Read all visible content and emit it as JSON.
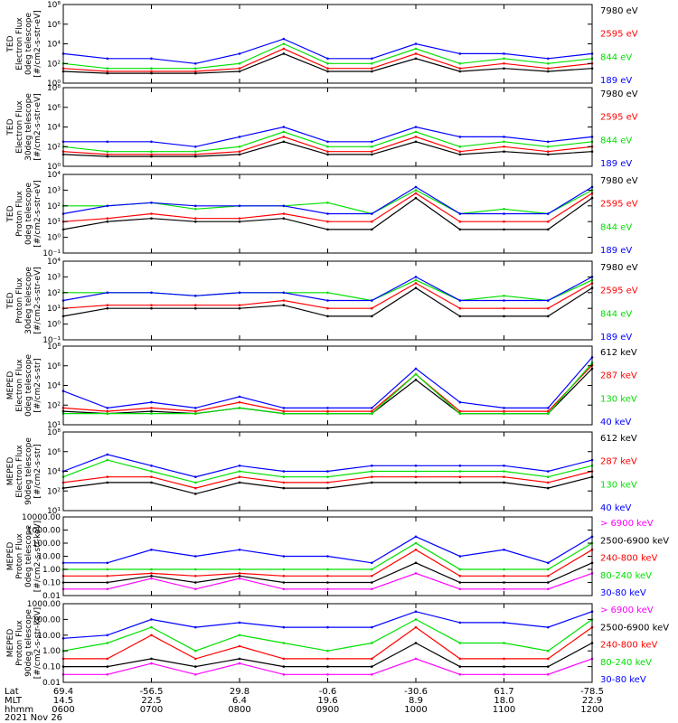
{
  "date_label": "2021 Nov 26",
  "colors": {
    "blue": "#0000ff",
    "green": "#00e000",
    "red": "#ff0000",
    "black": "#000000",
    "magenta": "#ff00ff"
  },
  "time_axis": {
    "rows": [
      {
        "label": "Lat",
        "values": [
          "69.4",
          "-56.5",
          "29.8",
          "-0.6",
          "-30.6",
          "61.7",
          "-78.5"
        ]
      },
      {
        "label": "MLT",
        "values": [
          "14.5",
          "22.5",
          "6.4",
          "19.6",
          "8.9",
          "18.0",
          "22.9"
        ]
      },
      {
        "label": "hhmm",
        "values": [
          "0600",
          "0700",
          "0800",
          "0900",
          "1000",
          "1100",
          "1200"
        ]
      }
    ]
  },
  "chart_data": [
    {
      "type": "line",
      "ylabel": [
        "TED",
        "Electron Flux",
        "0deg telescope",
        "[#/cm2-s-str-eV]"
      ],
      "yticks": [
        "10⁰",
        "10²",
        "10⁴",
        "10⁶",
        "10⁸"
      ],
      "log_range": [
        0,
        8
      ],
      "legend": [
        {
          "label": "7980 eV",
          "color": "#000000"
        },
        {
          "label": "2595 eV",
          "color": "#ff0000"
        },
        {
          "label": "844 eV",
          "color": "#00e000"
        },
        {
          "label": "189 eV",
          "color": "#0000ff"
        }
      ],
      "x": [
        "0600",
        "0630",
        "0700",
        "0730",
        "0800",
        "0830",
        "0900",
        "0930",
        "1000",
        "1030",
        "1100",
        "1130",
        "1200"
      ],
      "series": [
        {
          "name": "189 eV",
          "values": [
            3,
            2.5,
            2.5,
            2,
            3,
            4.5,
            2.5,
            2.5,
            4,
            3,
            3,
            2.5,
            3
          ]
        },
        {
          "name": "844 eV",
          "values": [
            2,
            1.5,
            1.5,
            1.5,
            2,
            4,
            2,
            2,
            3.5,
            2,
            2.5,
            2,
            2.5
          ]
        },
        {
          "name": "2595 eV",
          "values": [
            1.5,
            1.2,
            1.2,
            1.2,
            1.5,
            3.5,
            1.5,
            1.5,
            3,
            1.5,
            2,
            1.5,
            2
          ]
        },
        {
          "name": "7980 eV",
          "values": [
            1.2,
            1,
            1,
            1,
            1.2,
            3,
            1.2,
            1.2,
            2.5,
            1.2,
            1.5,
            1.2,
            1.5
          ]
        }
      ]
    },
    {
      "type": "line",
      "ylabel": [
        "TED",
        "Electron Flux",
        "30deg telescope",
        "[#/cm2-s-str-eV]"
      ],
      "yticks": [
        "10⁰",
        "10²",
        "10⁴",
        "10⁶",
        "10⁸"
      ],
      "log_range": [
        0,
        8
      ],
      "legend": [
        {
          "label": "7980 eV",
          "color": "#000000"
        },
        {
          "label": "2595 eV",
          "color": "#ff0000"
        },
        {
          "label": "844 eV",
          "color": "#00e000"
        },
        {
          "label": "189 eV",
          "color": "#0000ff"
        }
      ],
      "x": [
        "0600",
        "0630",
        "0700",
        "0730",
        "0800",
        "0830",
        "0900",
        "0930",
        "1000",
        "1030",
        "1100",
        "1130",
        "1200"
      ],
      "series": [
        {
          "name": "189 eV",
          "values": [
            2.5,
            2.5,
            2.5,
            2,
            3,
            4,
            2.5,
            2.5,
            4,
            3,
            3,
            2.5,
            3
          ]
        },
        {
          "name": "844 eV",
          "values": [
            2,
            1.5,
            1.5,
            1.5,
            2,
            3.5,
            2,
            2,
            3.5,
            2,
            2.5,
            2,
            2.5
          ]
        },
        {
          "name": "2595 eV",
          "values": [
            1.5,
            1.2,
            1.2,
            1.2,
            1.5,
            3,
            1.5,
            1.5,
            3,
            1.5,
            2,
            1.5,
            2
          ]
        },
        {
          "name": "7980 eV",
          "values": [
            1.2,
            1,
            1,
            1,
            1.2,
            2.5,
            1.2,
            1.2,
            2.5,
            1.2,
            1.5,
            1.2,
            1.5
          ]
        }
      ]
    },
    {
      "type": "line",
      "ylabel": [
        "TED",
        "Proton Flux",
        "0deg telescope",
        "[#/cm2-s-str-eV]"
      ],
      "yticks": [
        "10⁻¹",
        "10⁰",
        "10¹",
        "10²",
        "10³",
        "10⁴"
      ],
      "log_range": [
        -1,
        4
      ],
      "legend": [
        {
          "label": "7980 eV",
          "color": "#000000"
        },
        {
          "label": "2595 eV",
          "color": "#ff0000"
        },
        {
          "label": "844 eV",
          "color": "#00e000"
        },
        {
          "label": "189 eV",
          "color": "#0000ff"
        }
      ],
      "x": [
        "0600",
        "0630",
        "0700",
        "0730",
        "0800",
        "0830",
        "0900",
        "0930",
        "1000",
        "1030",
        "1100",
        "1130",
        "1200"
      ],
      "series": [
        {
          "name": "189 eV",
          "values": [
            1.5,
            2,
            2.2,
            2,
            2,
            2,
            1.5,
            1.5,
            3.2,
            1.5,
            1.5,
            1.5,
            3.2
          ]
        },
        {
          "name": "844 eV",
          "values": [
            2,
            2,
            2.2,
            1.8,
            2,
            2,
            2.2,
            1.5,
            3,
            1.5,
            1.8,
            1.5,
            3
          ]
        },
        {
          "name": "2595 eV",
          "values": [
            1,
            1.2,
            1.5,
            1.2,
            1.2,
            1.5,
            1,
            1,
            2.8,
            1,
            1,
            1,
            2.8
          ]
        },
        {
          "name": "7980 eV",
          "values": [
            0.5,
            1,
            1.2,
            1,
            1,
            1.2,
            0.5,
            0.5,
            2.5,
            0.5,
            0.5,
            0.5,
            2.5
          ]
        }
      ]
    },
    {
      "type": "line",
      "ylabel": [
        "TED",
        "Proton Flux",
        "30deg telescope",
        "[#/cm2-s-str-eV]"
      ],
      "yticks": [
        "10⁻¹",
        "10⁰",
        "10¹",
        "10²",
        "10³",
        "10⁴"
      ],
      "log_range": [
        -1,
        4
      ],
      "legend": [
        {
          "label": "7980 eV",
          "color": "#000000"
        },
        {
          "label": "2595 eV",
          "color": "#ff0000"
        },
        {
          "label": "844 eV",
          "color": "#00e000"
        },
        {
          "label": "189 eV",
          "color": "#0000ff"
        }
      ],
      "x": [
        "0600",
        "0630",
        "0700",
        "0730",
        "0800",
        "0830",
        "0900",
        "0930",
        "1000",
        "1030",
        "1100",
        "1130",
        "1200"
      ],
      "series": [
        {
          "name": "189 eV",
          "values": [
            1.5,
            2,
            2,
            1.8,
            2,
            2,
            1.5,
            1.5,
            3,
            1.5,
            1.5,
            1.5,
            3
          ]
        },
        {
          "name": "844 eV",
          "values": [
            2,
            2,
            2,
            1.8,
            2,
            2,
            2,
            1.5,
            2.8,
            1.5,
            1.8,
            1.5,
            2.8
          ]
        },
        {
          "name": "2595 eV",
          "values": [
            1,
            1.2,
            1.2,
            1.2,
            1.2,
            1.5,
            1,
            1,
            2.6,
            1,
            1,
            1,
            2.6
          ]
        },
        {
          "name": "7980 eV",
          "values": [
            0.5,
            1,
            1,
            1,
            1,
            1.2,
            0.5,
            0.5,
            2.3,
            0.5,
            0.5,
            0.5,
            2.3
          ]
        }
      ]
    },
    {
      "type": "line",
      "ylabel": [
        "MEPED",
        "Electron Flux",
        "0deg telescope",
        "[#/cm2-s-str]"
      ],
      "yticks": [
        "10¹",
        "10²",
        "10⁴",
        "10⁶",
        "10⁸"
      ],
      "log_range": [
        1,
        8
      ],
      "legend": [
        {
          "label": "612 keV",
          "color": "#000000"
        },
        {
          "label": "287 keV",
          "color": "#ff0000"
        },
        {
          "label": "130 keV",
          "color": "#00e000"
        },
        {
          "label": "40 keV",
          "color": "#0000ff"
        }
      ],
      "x": [
        "0600",
        "0630",
        "0700",
        "0730",
        "0800",
        "0830",
        "0900",
        "0930",
        "1000",
        "1030",
        "1100",
        "1130",
        "1200"
      ],
      "series": [
        {
          "name": "40 keV",
          "values": [
            4,
            2.5,
            3,
            2.5,
            3.5,
            2.5,
            2.5,
            2.5,
            6,
            3,
            2.5,
            2.5,
            7
          ]
        },
        {
          "name": "130 keV",
          "values": [
            2,
            2,
            2,
            2,
            2.5,
            2,
            2,
            2,
            5.5,
            2,
            2,
            2,
            6.5
          ]
        },
        {
          "name": "287 keV",
          "values": [
            2.5,
            2.2,
            2.5,
            2.2,
            3,
            2.2,
            2.2,
            2.2,
            5.5,
            2.2,
            2.2,
            2.2,
            6.3
          ]
        },
        {
          "name": "612 keV",
          "values": [
            2.2,
            2,
            2.2,
            2,
            2.5,
            2,
            2,
            2,
            5,
            2,
            2,
            2,
            6
          ]
        }
      ]
    },
    {
      "type": "line",
      "ylabel": [
        "MEPED",
        "Electron Flux",
        "90deg telescope",
        "[#/cm2-s-str]"
      ],
      "yticks": [
        "10¹",
        "10²",
        "10⁴",
        "10⁶",
        "10⁸"
      ],
      "log_range": [
        1,
        8
      ],
      "legend": [
        {
          "label": "612 keV",
          "color": "#000000"
        },
        {
          "label": "287 keV",
          "color": "#ff0000"
        },
        {
          "label": "130 keV",
          "color": "#00e000"
        },
        {
          "label": "40 keV",
          "color": "#0000ff"
        }
      ],
      "x": [
        "0600",
        "0630",
        "0700",
        "0730",
        "0800",
        "0830",
        "0900",
        "0930",
        "1000",
        "1030",
        "1100",
        "1130",
        "1200"
      ],
      "series": [
        {
          "name": "40 keV",
          "values": [
            4.5,
            6,
            5,
            4,
            5,
            4.5,
            4.5,
            5,
            5,
            5,
            5,
            4.5,
            5.5
          ]
        },
        {
          "name": "130 keV",
          "values": [
            4,
            5.5,
            4.5,
            3.5,
            4.5,
            4,
            4,
            4.5,
            4.5,
            4.5,
            4.5,
            4,
            5
          ]
        },
        {
          "name": "287 keV",
          "values": [
            3.5,
            4,
            4,
            3,
            4,
            3.5,
            3.5,
            4,
            4,
            4,
            4,
            3.5,
            4.5
          ]
        },
        {
          "name": "612 keV",
          "values": [
            3,
            3.5,
            3.5,
            2.5,
            3.5,
            3,
            3,
            3.5,
            3.5,
            3.5,
            3.5,
            3,
            4
          ]
        }
      ]
    },
    {
      "type": "line",
      "ylabel": [
        "MEPED",
        "Proton Flux",
        "0deg telescope",
        "[#/cm2-s-str-keV]"
      ],
      "yticks": [
        "0.01",
        "0.10",
        "1.00",
        "10.00",
        "100.00",
        "1000.00",
        "10000.00"
      ],
      "log_range": [
        -2,
        4
      ],
      "legend": [
        {
          "label": "> 6900 keV",
          "color": "#ff00ff"
        },
        {
          "label": "2500-6900 keV",
          "color": "#000000"
        },
        {
          "label": "240-800 keV",
          "color": "#ff0000"
        },
        {
          "label": "80-240 keV",
          "color": "#00e000"
        },
        {
          "label": "30-80 keV",
          "color": "#0000ff"
        }
      ],
      "x": [
        "0600",
        "0630",
        "0700",
        "0730",
        "0800",
        "0830",
        "0900",
        "0930",
        "1000",
        "1030",
        "1100",
        "1130",
        "1200"
      ],
      "series": [
        {
          "name": "30-80 keV",
          "values": [
            0.5,
            0.5,
            1.5,
            1,
            1.5,
            1,
            1,
            0.5,
            2.5,
            1,
            1.5,
            0.5,
            2.5
          ]
        },
        {
          "name": "80-240 keV",
          "values": [
            0,
            0,
            0,
            0,
            0,
            0,
            0,
            0,
            2,
            0,
            0,
            0,
            2
          ]
        },
        {
          "name": "240-800 keV",
          "values": [
            -0.5,
            -0.5,
            -0.3,
            -0.5,
            -0.3,
            -0.5,
            -0.5,
            -0.5,
            1.5,
            -0.5,
            -0.5,
            -0.5,
            1.5
          ]
        },
        {
          "name": "2500-6900 keV",
          "values": [
            -1,
            -1,
            -0.5,
            -1,
            -0.5,
            -1,
            -1,
            -1,
            0.5,
            -1,
            -1,
            -1,
            0.5
          ]
        },
        {
          "name": "> 6900 keV",
          "values": [
            -1.5,
            -1.5,
            -0.7,
            -1.5,
            -0.7,
            -1.5,
            -1.5,
            -1.5,
            -0.3,
            -1.5,
            -1.5,
            -1.5,
            -0.3
          ]
        }
      ]
    },
    {
      "type": "line",
      "ylabel": [
        "MEPED",
        "Proton Flux",
        "90deg telescope",
        "[#/cm2-s-str-keV]"
      ],
      "yticks": [
        "0.01",
        "0.10",
        "1.00",
        "10.00",
        "100.00",
        "1000.00"
      ],
      "log_range": [
        -2,
        3
      ],
      "legend": [
        {
          "label": "> 6900 keV",
          "color": "#ff00ff"
        },
        {
          "label": "2500-6900 keV",
          "color": "#000000"
        },
        {
          "label": "240-800 keV",
          "color": "#ff0000"
        },
        {
          "label": "80-240 keV",
          "color": "#00e000"
        },
        {
          "label": "30-80 keV",
          "color": "#0000ff"
        }
      ],
      "x": [
        "0600",
        "0630",
        "0700",
        "0730",
        "0800",
        "0830",
        "0900",
        "0930",
        "1000",
        "1030",
        "1100",
        "1130",
        "1200"
      ],
      "series": [
        {
          "name": "30-80 keV",
          "values": [
            0.8,
            1,
            2,
            1.5,
            1.8,
            1.5,
            1.5,
            1.5,
            2.5,
            1.8,
            1.8,
            1.5,
            2.5
          ]
        },
        {
          "name": "80-240 keV",
          "values": [
            0,
            0.5,
            1.5,
            0,
            1,
            0.5,
            0,
            0.5,
            2,
            0.5,
            0.5,
            0,
            2
          ]
        },
        {
          "name": "240-800 keV",
          "values": [
            -0.5,
            -0.5,
            1,
            -0.5,
            0.3,
            -0.5,
            -0.5,
            -0.5,
            1.5,
            -0.5,
            -0.5,
            -0.5,
            1.5
          ]
        },
        {
          "name": "2500-6900 keV",
          "values": [
            -1,
            -1,
            -0.5,
            -1,
            -0.5,
            -1,
            -1,
            -1,
            0.5,
            -1,
            -1,
            -1,
            0.5
          ]
        },
        {
          "name": "> 6900 keV",
          "values": [
            -1.5,
            -1.5,
            -0.8,
            -1.5,
            -0.8,
            -1.5,
            -1.5,
            -1.5,
            -0.5,
            -1.5,
            -1.5,
            -1.5,
            -0.5
          ]
        }
      ]
    }
  ]
}
